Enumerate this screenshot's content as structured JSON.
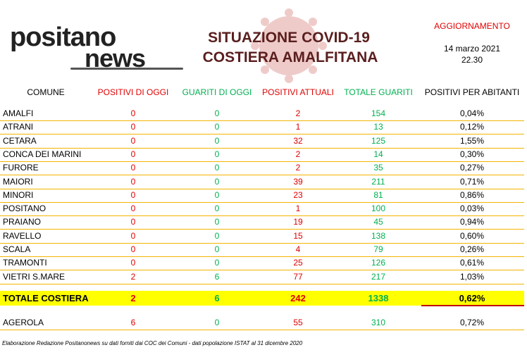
{
  "header": {
    "logo": {
      "top": "positano",
      "bottom": "news"
    },
    "title": [
      "SITUAZIONE COVID-19",
      "COSTIERA AMALFITANA"
    ],
    "update": {
      "label": "AGGIORNAMENTO",
      "date": "14 marzo 2021",
      "time": "22.30"
    }
  },
  "table": {
    "columns": [
      "COMUNE",
      "POSITIVI DI OGGI",
      "GUARITI DI OGGI",
      "POSITIVI ATTUALI",
      "TOTALE GUARITI",
      "POSITIVI  PER ABITANTI"
    ],
    "rows": [
      [
        "AMALFI",
        "0",
        "0",
        "2",
        "154",
        "0,04%"
      ],
      [
        "ATRANI",
        "0",
        "0",
        "1",
        "13",
        "0,12%"
      ],
      [
        "CETARA",
        "0",
        "0",
        "32",
        "125",
        "1,55%"
      ],
      [
        "CONCA DEI MARINI",
        "0",
        "0",
        "2",
        "14",
        "0,30%"
      ],
      [
        "FURORE",
        "0",
        "0",
        "2",
        "35",
        "0,27%"
      ],
      [
        "MAIORI",
        "0",
        "0",
        "39",
        "211",
        "0,71%"
      ],
      [
        "MINORI",
        "0",
        "0",
        "23",
        "81",
        "0,86%"
      ],
      [
        "POSITANO",
        "0",
        "0",
        "1",
        "100",
        "0,03%"
      ],
      [
        "PRAIANO",
        "0",
        "0",
        "19",
        "45",
        "0,94%"
      ],
      [
        "RAVELLO",
        "0",
        "0",
        "15",
        "138",
        "0,60%"
      ],
      [
        "SCALA",
        "0",
        "0",
        "4",
        "79",
        "0,26%"
      ],
      [
        "TRAMONTI",
        "0",
        "0",
        "25",
        "126",
        "0,61%"
      ],
      [
        "VIETRI S.MARE",
        "2",
        "6",
        "77",
        "217",
        "1,03%"
      ]
    ],
    "total": [
      "TOTALE COSTIERA",
      "2",
      "6",
      "242",
      "1338",
      "0,62%"
    ],
    "extra": [
      "AGEROLA",
      "6",
      "0",
      "55",
      "310",
      "0,72%"
    ]
  },
  "footer": "Elaborazione Redazione Positanonews su dati forniti dai COC dei Comuni - dati popolazione ISTAT al 31 dicembre 2020"
}
